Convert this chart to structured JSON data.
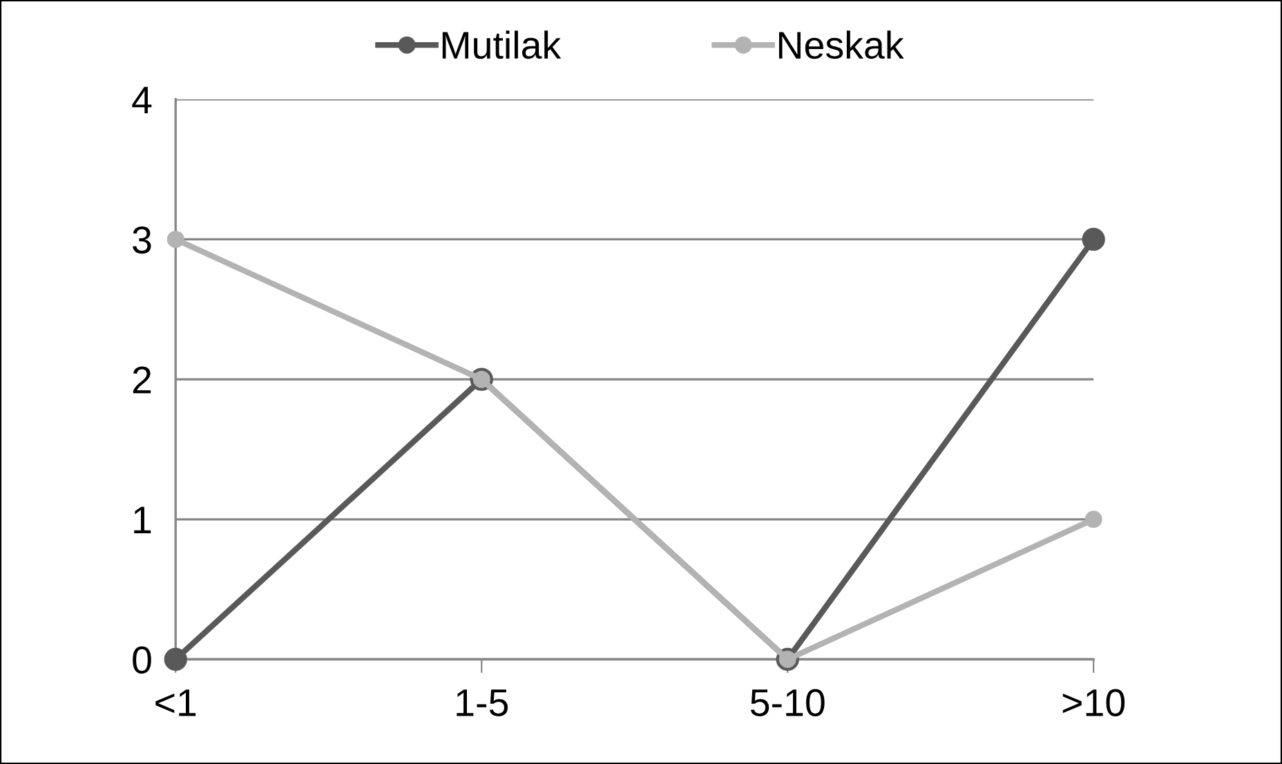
{
  "chart_data": {
    "type": "line",
    "categories": [
      "<1",
      "1-5",
      "5-10",
      ">10"
    ],
    "series": [
      {
        "name": "Mutilak",
        "color": "#595959",
        "values": [
          0,
          2,
          0,
          3
        ]
      },
      {
        "name": "Neskak",
        "color": "#b3b3b3",
        "values": [
          3,
          2,
          0,
          1
        ]
      }
    ],
    "ylim": [
      0,
      4
    ],
    "yticks": [
      0,
      1,
      2,
      3,
      4
    ],
    "grid": "y",
    "legend": "top",
    "marker": "circle",
    "line_style": "solid"
  }
}
